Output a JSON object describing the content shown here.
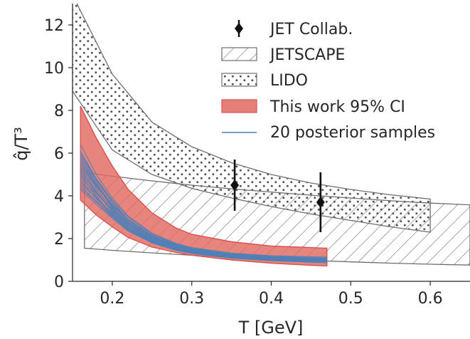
{
  "chart_data": {
    "type": "line",
    "xlabel": "T [GeV]",
    "ylabel": "q̂/T³",
    "xlim": [
      0.15,
      0.65
    ],
    "ylim": [
      0,
      13
    ],
    "xticks": [
      "0.2",
      "0.3",
      "0.4",
      "0.5",
      "0.6"
    ],
    "yticks": [
      "0",
      "2",
      "4",
      "6",
      "8",
      "10",
      "12"
    ],
    "grid": false,
    "legend_position": "top-right",
    "legend": [
      "JET Collab.",
      "JETSCAPE",
      "LIDO",
      "This work 95% CI",
      "20 posterior samples"
    ],
    "colors": {
      "band": "#e06a62",
      "band_edge": "#d9534f",
      "posterior": "#4f7fb7",
      "jet_point": "#111111",
      "hatch_edge": "#6e6e6e"
    },
    "series": [
      {
        "name": "JET Collab.",
        "kind": "errorbar",
        "points": [
          {
            "x": 0.354,
            "y": 4.5,
            "yerr_low": 1.2,
            "yerr_high": 1.2
          },
          {
            "x": 0.462,
            "y": 3.7,
            "yerr_low": 1.4,
            "yerr_high": 1.4
          }
        ]
      },
      {
        "name": "JETSCAPE",
        "kind": "band",
        "x": [
          0.165,
          0.2,
          0.25,
          0.3,
          0.35,
          0.4,
          0.45,
          0.5,
          0.55,
          0.6,
          0.65
        ],
        "upper": [
          5.1,
          4.92,
          4.7,
          4.5,
          4.33,
          4.18,
          4.03,
          3.9,
          3.77,
          3.66,
          3.58
        ],
        "lower": [
          1.55,
          1.45,
          1.33,
          1.22,
          1.13,
          1.05,
          0.98,
          0.91,
          0.85,
          0.8,
          0.76
        ]
      },
      {
        "name": "LIDO",
        "kind": "band",
        "x": [
          0.15,
          0.2,
          0.25,
          0.3,
          0.35,
          0.4,
          0.45,
          0.5,
          0.55,
          0.6
        ],
        "upper": [
          13.4,
          9.7,
          7.45,
          6.3,
          5.55,
          5.0,
          4.6,
          4.3,
          4.05,
          3.85
        ],
        "lower": [
          8.9,
          6.15,
          5.0,
          4.35,
          3.9,
          3.5,
          3.15,
          2.85,
          2.55,
          2.3
        ]
      },
      {
        "name": "This work 95% CI",
        "kind": "band",
        "x": [
          0.16,
          0.18,
          0.2,
          0.22,
          0.25,
          0.28,
          0.3,
          0.35,
          0.4,
          0.45,
          0.47
        ],
        "upper": [
          8.2,
          6.7,
          5.4,
          4.3,
          3.2,
          2.5,
          2.2,
          1.85,
          1.65,
          1.58,
          1.55
        ],
        "lower": [
          3.8,
          3.1,
          2.55,
          2.05,
          1.6,
          1.35,
          1.22,
          1.0,
          0.85,
          0.75,
          0.72
        ]
      },
      {
        "name": "20 posterior samples",
        "kind": "lines",
        "x": [
          0.16,
          0.18,
          0.2,
          0.22,
          0.25,
          0.28,
          0.3,
          0.35,
          0.4,
          0.45,
          0.47
        ],
        "samples": [
          [
            6.1,
            4.8,
            3.8,
            3.0,
            2.2,
            1.75,
            1.55,
            1.3,
            1.18,
            1.12,
            1.1
          ],
          [
            5.4,
            4.4,
            3.6,
            2.9,
            2.15,
            1.72,
            1.52,
            1.25,
            1.12,
            1.05,
            1.03
          ],
          [
            5.8,
            4.6,
            3.55,
            2.7,
            2.0,
            1.62,
            1.45,
            1.22,
            1.1,
            1.03,
            1.01
          ],
          [
            4.9,
            4.1,
            3.35,
            2.65,
            1.95,
            1.58,
            1.42,
            1.18,
            1.05,
            0.98,
            0.96
          ],
          [
            5.2,
            4.2,
            3.3,
            2.6,
            1.9,
            1.5,
            1.35,
            1.12,
            1.0,
            0.93,
            0.92
          ],
          [
            4.6,
            3.9,
            3.2,
            2.55,
            1.92,
            1.55,
            1.4,
            1.15,
            1.02,
            0.95,
            0.93
          ],
          [
            6.4,
            5.0,
            3.9,
            3.05,
            2.25,
            1.78,
            1.58,
            1.32,
            1.2,
            1.15,
            1.13
          ],
          [
            5.0,
            4.0,
            3.1,
            2.4,
            1.8,
            1.45,
            1.3,
            1.08,
            0.97,
            0.9,
            0.88
          ],
          [
            5.6,
            4.5,
            3.45,
            2.65,
            1.98,
            1.6,
            1.45,
            1.2,
            1.08,
            1.0,
            0.98
          ],
          [
            4.4,
            3.7,
            3.0,
            2.4,
            1.85,
            1.5,
            1.36,
            1.13,
            1.0,
            0.93,
            0.91
          ],
          [
            5.9,
            4.7,
            3.7,
            2.85,
            2.1,
            1.68,
            1.5,
            1.26,
            1.14,
            1.08,
            1.06
          ],
          [
            4.8,
            3.95,
            3.15,
            2.5,
            1.88,
            1.52,
            1.38,
            1.15,
            1.03,
            0.96,
            0.94
          ],
          [
            5.3,
            4.3,
            3.4,
            2.7,
            2.02,
            1.63,
            1.47,
            1.22,
            1.1,
            1.02,
            1.0
          ],
          [
            4.5,
            3.75,
            3.05,
            2.45,
            1.86,
            1.5,
            1.36,
            1.12,
            0.99,
            0.91,
            0.89
          ],
          [
            6.0,
            4.75,
            3.72,
            2.9,
            2.14,
            1.7,
            1.52,
            1.27,
            1.15,
            1.09,
            1.07
          ],
          [
            5.1,
            4.15,
            3.25,
            2.55,
            1.9,
            1.54,
            1.39,
            1.16,
            1.04,
            0.97,
            0.95
          ],
          [
            5.5,
            4.45,
            3.5,
            2.75,
            2.05,
            1.65,
            1.48,
            1.24,
            1.12,
            1.05,
            1.03
          ],
          [
            4.7,
            3.85,
            3.1,
            2.45,
            1.84,
            1.48,
            1.34,
            1.1,
            0.98,
            0.9,
            0.88
          ],
          [
            5.7,
            4.55,
            3.6,
            2.8,
            2.08,
            1.66,
            1.49,
            1.25,
            1.13,
            1.06,
            1.04
          ],
          [
            4.3,
            3.6,
            2.95,
            2.35,
            1.8,
            1.46,
            1.32,
            1.09,
            0.97,
            0.89,
            0.87
          ]
        ]
      }
    ]
  }
}
